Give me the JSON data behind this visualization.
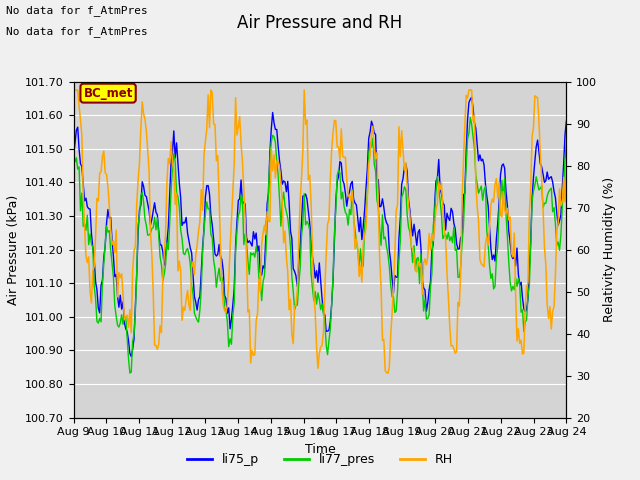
{
  "title": "Air Pressure and RH",
  "xlabel": "Time",
  "ylabel_left": "Air Pressure (kPa)",
  "ylabel_right": "Relativity Humidity (%)",
  "ylim_left": [
    100.7,
    101.7
  ],
  "ylim_right": [
    20,
    100
  ],
  "yticks_left": [
    100.7,
    100.8,
    100.9,
    101.0,
    101.1,
    101.2,
    101.3,
    101.4,
    101.5,
    101.6,
    101.7
  ],
  "yticks_right": [
    20,
    30,
    40,
    50,
    60,
    70,
    80,
    90,
    100
  ],
  "xtick_labels": [
    "Aug 9",
    "Aug 10",
    "Aug 11",
    "Aug 12",
    "Aug 13",
    "Aug 14",
    "Aug 15",
    "Aug 16",
    "Aug 17",
    "Aug 18",
    "Aug 19",
    "Aug 20",
    "Aug 21",
    "Aug 22",
    "Aug 23",
    "Aug 24"
  ],
  "note_line1": "No data for f_AtmPres",
  "note_line2": "No data for f_AtmPres",
  "station_label": "BC_met",
  "legend_labels": [
    "li75_p",
    "li77_pres",
    "RH"
  ],
  "line_colors": [
    "blue",
    "#00cc00",
    "orange"
  ],
  "fig_bg_color": "#f0f0f0",
  "plot_bg_color": "#d4d4d4",
  "title_fontsize": 12,
  "axis_fontsize": 9,
  "tick_fontsize": 8,
  "note_fontsize": 8,
  "legend_fontsize": 9
}
